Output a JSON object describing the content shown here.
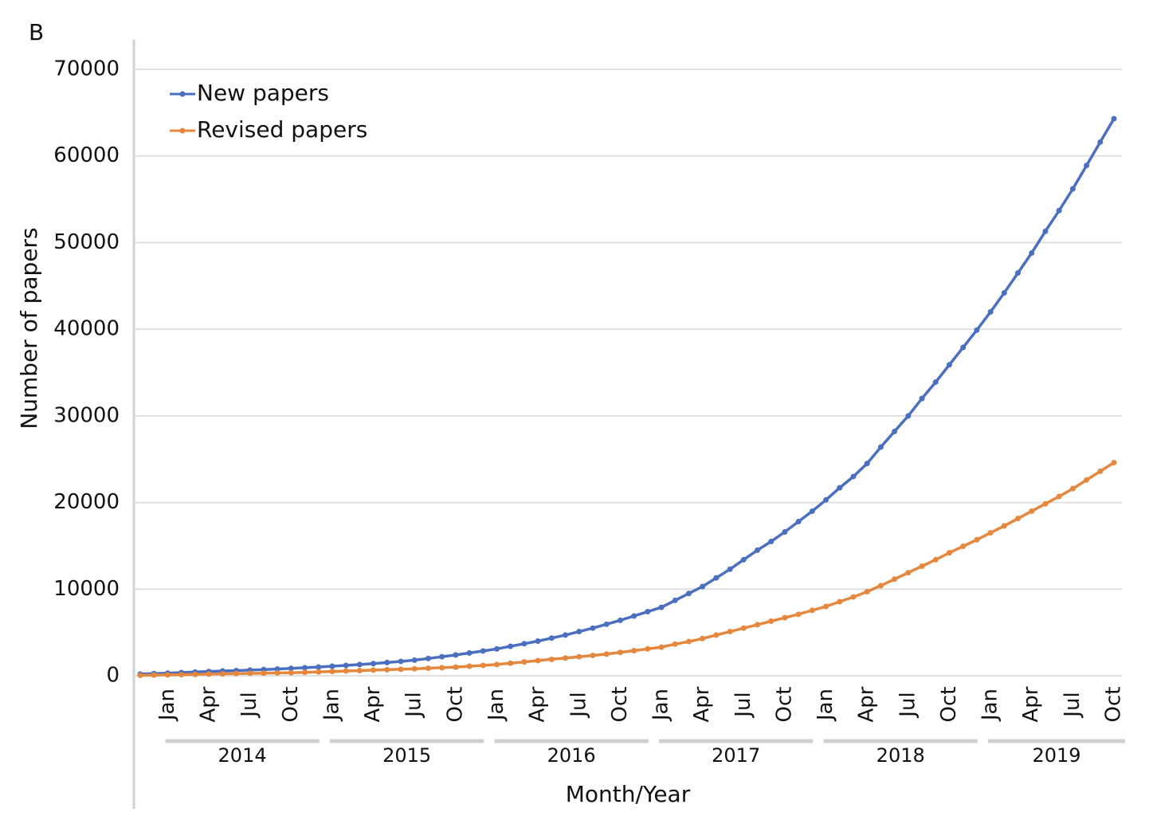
{
  "chart_data": {
    "type": "line",
    "panel_label": "B",
    "x_label": "Month/Year",
    "y_label": "Number of papers",
    "categories": [
      null,
      null,
      "Jan",
      null,
      null,
      "Apr",
      null,
      null,
      "Jul",
      null,
      null,
      "Oct",
      null,
      null,
      "Jan",
      null,
      null,
      "Apr",
      null,
      null,
      "Jul",
      null,
      null,
      "Oct",
      null,
      null,
      "Jan",
      null,
      null,
      "Apr",
      null,
      null,
      "Jul",
      null,
      null,
      "Oct",
      null,
      null,
      "Jan",
      null,
      null,
      "Apr",
      null,
      null,
      "Jul",
      null,
      null,
      "Oct",
      null,
      null,
      "Jan",
      null,
      null,
      "Apr",
      null,
      null,
      "Jul",
      null,
      null,
      "Oct",
      null,
      null,
      "Jan",
      null,
      null,
      "Apr",
      null,
      null,
      "Jul",
      null,
      null,
      "Oct"
    ],
    "years": [
      "2014",
      "2015",
      "2016",
      "2017",
      "2018",
      "2019"
    ],
    "series": [
      {
        "name": "New papers",
        "color": "#4a6fc1",
        "values": [
          200,
          250,
          300,
          370,
          430,
          500,
          550,
          600,
          650,
          720,
          780,
          850,
          930,
          1010,
          1100,
          1200,
          1300,
          1400,
          1530,
          1660,
          1800,
          2000,
          2200,
          2400,
          2630,
          2860,
          3100,
          3400,
          3700,
          4000,
          4350,
          4700,
          5100,
          5500,
          5950,
          6400,
          6900,
          7400,
          7900,
          8700,
          9500,
          10300,
          11300,
          12300,
          13400,
          14500,
          15500,
          16600,
          17800,
          19000,
          20300,
          21700,
          23000,
          24500,
          26400,
          28200,
          30000,
          32000,
          33900,
          35900,
          37900,
          39900,
          42000,
          44200,
          46500,
          48800,
          51300,
          53700,
          56200,
          58900,
          61600,
          64300
        ]
      },
      {
        "name": "Revised papers",
        "color": "#e6873e",
        "values": [
          50,
          80,
          100,
          130,
          160,
          190,
          220,
          250,
          280,
          300,
          330,
          350,
          400,
          450,
          500,
          550,
          600,
          650,
          700,
          750,
          800,
          870,
          930,
          1000,
          1100,
          1200,
          1300,
          1450,
          1600,
          1750,
          1900,
          2050,
          2200,
          2350,
          2500,
          2700,
          2900,
          3100,
          3300,
          3650,
          3950,
          4300,
          4700,
          5100,
          5500,
          5900,
          6300,
          6700,
          7100,
          7550,
          8000,
          8550,
          9100,
          9700,
          10400,
          11150,
          11900,
          12650,
          13400,
          14200,
          14950,
          15700,
          16500,
          17300,
          18150,
          19000,
          19850,
          20700,
          21600,
          22600,
          23600,
          24600
        ]
      }
    ],
    "ylim": [
      0,
      70000
    ],
    "yticks": [
      0,
      10000,
      20000,
      30000,
      40000,
      50000,
      60000,
      70000
    ],
    "grid": true
  }
}
